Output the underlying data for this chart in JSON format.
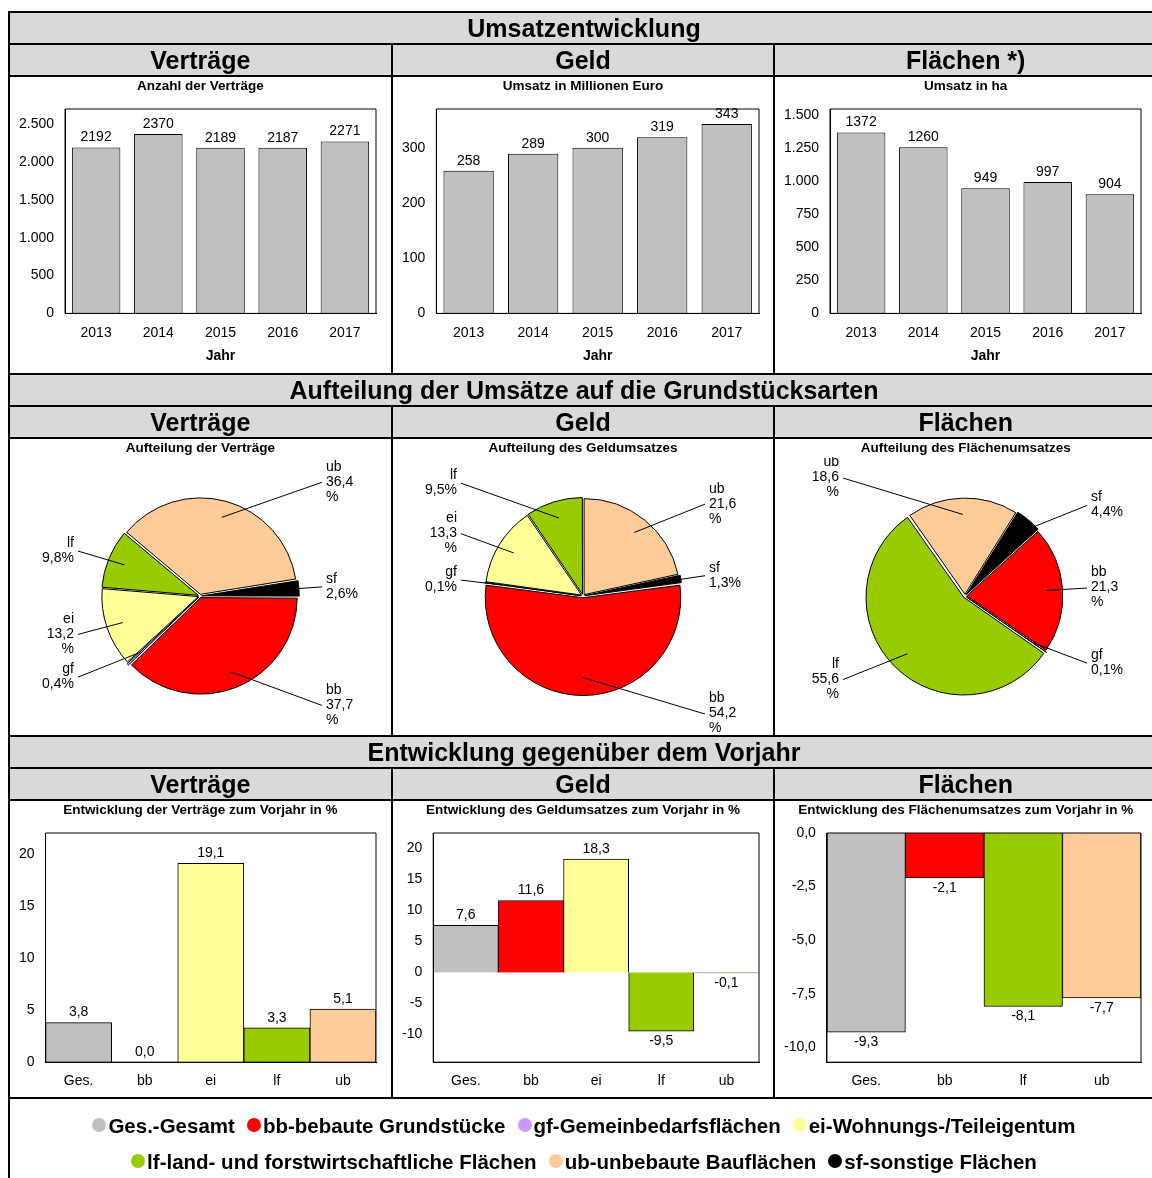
{
  "chart_data": [
    {
      "type": "bar",
      "title": "Verträge",
      "subtitle": "Anzahl der Verträge",
      "annotations": [
        "Umsatzentwicklung"
      ],
      "xlabel": "Jahr",
      "categories": [
        "2013",
        "2014",
        "2015",
        "2016",
        "2017"
      ],
      "values": [
        2192,
        2370,
        2189,
        2187,
        2271
      ],
      "color": "#c0c0c0",
      "ylim": [
        0,
        2700
      ],
      "yticks": [
        0,
        500,
        {
          "value": 1000,
          "label": "1.000"
        },
        {
          "value": 1500,
          "label": "1.500"
        },
        {
          "value": 2000,
          "label": "2.000"
        },
        {
          "value": 2500,
          "label": "2.500"
        }
      ],
      "data_labels": true
    },
    {
      "type": "bar",
      "title": "Geld",
      "subtitle": "Umsatz in Millionen Euro",
      "xlabel": "Jahr",
      "categories": [
        "2013",
        "2014",
        "2015",
        "2016",
        "2017"
      ],
      "values": [
        258,
        289,
        300,
        319,
        343
      ],
      "color": "#c0c0c0",
      "ylim": [
        0,
        370
      ],
      "yticks": [
        0,
        100,
        200,
        300
      ],
      "data_labels": true
    },
    {
      "type": "bar",
      "title": "Flächen *)",
      "subtitle": "Umsatz in ha",
      "xlabel": "Jahr",
      "categories": [
        "2013",
        "2014",
        "2015",
        "2016",
        "2017"
      ],
      "values": [
        1372,
        1260,
        949,
        997,
        904
      ],
      "color": "#c0c0c0",
      "ylim": [
        0,
        1550
      ],
      "yticks": [
        0,
        250,
        500,
        750,
        {
          "value": 1000,
          "label": "1.000"
        },
        {
          "value": 1250,
          "label": "1.250"
        },
        {
          "value": 1500,
          "label": "1.500"
        }
      ],
      "data_labels": true
    },
    {
      "type": "pie",
      "title": "Verträge",
      "subtitle": "Aufteilung der Verträge",
      "annotations": [
        "Aufteilung der Umsätze auf die Grundstücksarten"
      ],
      "categories": [
        "ub",
        "sf",
        "bb",
        "gf",
        "ei",
        "lf"
      ],
      "values": [
        36.4,
        2.6,
        37.7,
        0.4,
        13.2,
        9.8
      ],
      "colors": [
        "#ffcc99",
        "#000000",
        "#ff0000",
        "#cc99ff",
        "#ffff99",
        "#99cc00"
      ],
      "value_labels": [
        "36,4 %",
        "2,6%",
        "37,7 %",
        "0,4%",
        "13,2 %",
        "9,8%"
      ]
    },
    {
      "type": "pie",
      "title": "Geld",
      "subtitle": "Aufteilung des Geldumsatzes",
      "categories": [
        "ub",
        "sf",
        "bb",
        "gf",
        "ei",
        "lf"
      ],
      "values": [
        21.6,
        1.3,
        54.2,
        0.1,
        13.3,
        9.5
      ],
      "colors": [
        "#ffcc99",
        "#000000",
        "#ff0000",
        "#cc99ff",
        "#ffff99",
        "#99cc00"
      ],
      "value_labels": [
        "21,6 %",
        "1,3%",
        "54,2 %",
        "0,1%",
        "13,3 %",
        "9,5%"
      ]
    },
    {
      "type": "pie",
      "title": "Flächen",
      "subtitle": "Aufteilung des Flächenumsatzes",
      "categories": [
        "ub",
        "sf",
        "bb",
        "gf",
        "lf"
      ],
      "values": [
        18.6,
        4.4,
        21.3,
        0.1,
        55.6
      ],
      "colors": [
        "#ffcc99",
        "#000000",
        "#ff0000",
        "#cc99ff",
        "#99cc00"
      ],
      "value_labels": [
        "18,6 %",
        "4,4%",
        "21,3 %",
        "0,1%",
        "55,6 %"
      ]
    },
    {
      "type": "bar",
      "title": "Verträge",
      "subtitle": "Entwicklung der Verträge zum Vorjahr in %",
      "annotations": [
        "Entwicklung gegenüber dem Vorjahr"
      ],
      "categories": [
        "Ges.",
        "bb",
        "ei",
        "lf",
        "ub"
      ],
      "values": [
        3.8,
        0.0,
        19.1,
        3.3,
        5.1
      ],
      "colors": [
        "#c0c0c0",
        "#ff0000",
        "#ffff99",
        "#99cc00",
        "#ffcc99"
      ],
      "value_labels": [
        "3,8",
        "0,0",
        "19,1",
        "3,3",
        "5,1"
      ],
      "ylim": [
        0,
        22
      ],
      "yticks": [
        0,
        5,
        10,
        15,
        20
      ]
    },
    {
      "type": "bar",
      "title": "Geld",
      "subtitle": "Entwicklung des Geldumsatzes zum Vorjahr in %",
      "categories": [
        "Ges.",
        "bb",
        "ei",
        "lf",
        "ub"
      ],
      "values": [
        7.6,
        11.6,
        18.3,
        -9.5,
        -0.1
      ],
      "colors": [
        "#c0c0c0",
        "#ff0000",
        "#ffff99",
        "#99cc00",
        "#ffcc99"
      ],
      "value_labels": [
        "7,6",
        "11,6",
        "18,3",
        "-9,5",
        "-0,1"
      ],
      "ylim": [
        -14.5,
        22.5
      ],
      "yticks": [
        -10,
        -5,
        0,
        5,
        10,
        15,
        20
      ]
    },
    {
      "type": "bar",
      "title": "Flächen",
      "subtitle": "Entwicklung des Flächenumsatzes zum Vorjahr in %",
      "categories": [
        "Ges.",
        "bb",
        "lf",
        "ub"
      ],
      "values": [
        -9.3,
        -2.1,
        -8.1,
        -7.7
      ],
      "colors": [
        "#c0c0c0",
        "#ff0000",
        "#99cc00",
        "#ffcc99"
      ],
      "value_labels": [
        "-9,3",
        "-2,1",
        "-8,1",
        "-7,7"
      ],
      "ylim": [
        -10.7,
        0
      ],
      "yticks": [
        {
          "value": -10,
          "label": "-10,0"
        },
        {
          "value": -7.5,
          "label": "-7,5"
        },
        {
          "value": -5,
          "label": "-5,0"
        },
        {
          "value": -2.5,
          "label": "-2,5"
        },
        {
          "value": 0,
          "label": "0,0"
        }
      ]
    },
    {
      "type": "other",
      "categories": [
        "Ges.-Gesamt",
        "bb-bebaute Grundstücke",
        "gf-Gemeinbedarfsflächen",
        "ei-Wohnungs-/Teileigentum",
        "lf-land- und forstwirtschaftliche Flächen",
        "ub-unbebaute Bauflächen",
        "sf-sonstige Flächen"
      ],
      "colors": [
        "#c0c0c0",
        "#ff0000",
        "#cc99ff",
        "#ffff99",
        "#99cc00",
        "#ffcc99",
        "#000000"
      ]
    }
  ]
}
